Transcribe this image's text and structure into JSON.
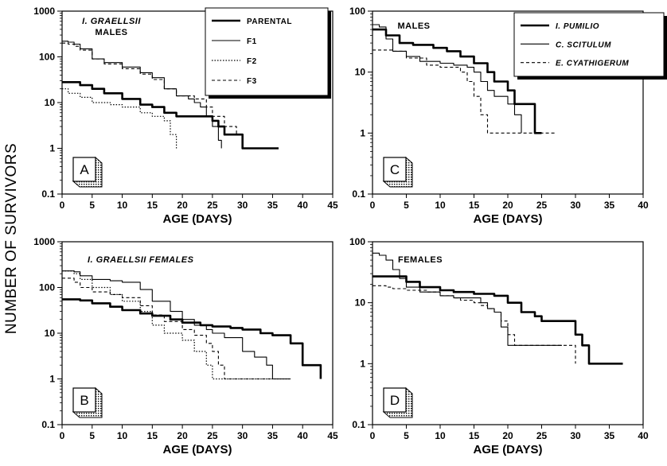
{
  "figure": {
    "ylabel": "NUMBER OF SURVIVORS"
  },
  "chart_data": [
    {
      "panel": "A",
      "type": "line",
      "title": [
        "I. GRAELLSII",
        "MALES"
      ],
      "xlabel": "AGE (DAYS)",
      "ylabel": "NUMBER OF SURVIVORS",
      "xlim": [
        0,
        45
      ],
      "ylim": [
        0.1,
        1000
      ],
      "yscale": "log",
      "xticks": [
        0,
        5,
        10,
        15,
        20,
        25,
        30,
        35,
        40,
        45
      ],
      "yticks": [
        0.1,
        1,
        10,
        100,
        1000
      ],
      "ytick_labels": [
        "0.1",
        "1",
        "10",
        "100",
        "1000"
      ],
      "legend": "top-right",
      "series": [
        {
          "name": "PARENTAL",
          "style": "solid-thick",
          "x": [
            0,
            2,
            3,
            5,
            7,
            10,
            13,
            15,
            17,
            19,
            24,
            25,
            26,
            27,
            28,
            30,
            33,
            36
          ],
          "y": [
            28,
            28,
            24,
            20,
            16,
            12,
            9,
            8,
            6,
            5,
            5,
            4,
            3,
            2,
            2,
            1,
            1,
            1
          ]
        },
        {
          "name": "F1",
          "style": "solid-thin",
          "x": [
            0,
            1,
            2,
            3,
            5,
            7,
            10,
            13,
            15,
            17,
            19,
            21,
            22,
            23,
            24,
            25,
            26,
            26.5
          ],
          "y": [
            220,
            210,
            190,
            150,
            90,
            75,
            60,
            45,
            35,
            20,
            14,
            12,
            10,
            8,
            5,
            3,
            1.5,
            1
          ]
        },
        {
          "name": "F2",
          "style": "dotted",
          "x": [
            0,
            1,
            3,
            5,
            8,
            10,
            13,
            15,
            17,
            18,
            19
          ],
          "y": [
            20,
            16,
            13,
            10,
            9,
            8,
            6,
            5,
            4,
            2,
            1
          ]
        },
        {
          "name": "F3",
          "style": "dashed",
          "x": [
            0,
            1,
            2,
            3,
            5,
            7,
            10,
            13,
            15,
            17,
            19,
            22,
            24,
            25,
            27,
            29,
            30
          ],
          "y": [
            200,
            190,
            170,
            140,
            90,
            70,
            55,
            42,
            32,
            20,
            14,
            12,
            8,
            5,
            3,
            2,
            1
          ]
        }
      ]
    },
    {
      "panel": "B",
      "type": "line",
      "title": [
        "I. GRAELLSII      FEMALES"
      ],
      "xlabel": "AGE (DAYS)",
      "ylabel": "NUMBER OF SURVIVORS",
      "xlim": [
        0,
        45
      ],
      "ylim": [
        0.1,
        1000
      ],
      "yscale": "log",
      "xticks": [
        0,
        5,
        10,
        15,
        20,
        25,
        30,
        35,
        40,
        45
      ],
      "yticks": [
        0.1,
        1,
        10,
        100,
        1000
      ],
      "ytick_labels": [
        "0.1",
        "1",
        "10",
        "100",
        "1000"
      ],
      "series": [
        {
          "name": "PARENTAL",
          "style": "solid-thick",
          "x": [
            0,
            3,
            5,
            8,
            10,
            13,
            15,
            18,
            20,
            23,
            25,
            28,
            30,
            33,
            35,
            38,
            40,
            41,
            42,
            43
          ],
          "y": [
            55,
            52,
            45,
            38,
            32,
            27,
            24,
            20,
            17,
            15,
            14,
            13,
            12,
            10,
            9,
            6,
            2,
            2,
            2,
            1
          ]
        },
        {
          "name": "F1",
          "style": "solid-thin",
          "x": [
            0,
            2,
            3,
            5,
            8,
            10,
            13,
            15,
            18,
            20,
            22,
            24,
            25,
            27,
            30,
            32,
            34,
            35,
            36,
            37,
            38
          ],
          "y": [
            230,
            220,
            180,
            150,
            140,
            130,
            90,
            50,
            30,
            20,
            15,
            12,
            10,
            8,
            4,
            3,
            2,
            1,
            1,
            1,
            1
          ]
        },
        {
          "name": "F2",
          "style": "dotted",
          "x": [
            0,
            2,
            3,
            5,
            8,
            10,
            13,
            15,
            17,
            20,
            22,
            24,
            25,
            26,
            27,
            30,
            32,
            35,
            38
          ],
          "y": [
            230,
            200,
            150,
            100,
            70,
            50,
            30,
            15,
            10,
            7,
            4,
            2,
            1,
            1,
            1,
            1,
            1,
            1,
            1
          ]
        },
        {
          "name": "F3",
          "style": "dashed",
          "x": [
            0,
            2,
            3,
            5,
            8,
            10,
            13,
            15,
            17,
            20,
            22,
            24,
            25,
            26,
            27,
            29,
            30,
            33,
            35,
            38
          ],
          "y": [
            160,
            130,
            100,
            80,
            70,
            60,
            40,
            25,
            18,
            12,
            9,
            6,
            4,
            2,
            1,
            1,
            1,
            1,
            1,
            1
          ]
        }
      ]
    },
    {
      "panel": "C",
      "type": "line",
      "title": [
        "MALES"
      ],
      "xlabel": "AGE (DAYS)",
      "ylabel": "NUMBER OF SURVIVORS",
      "xlim": [
        0,
        40
      ],
      "ylim": [
        0.1,
        100
      ],
      "yscale": "log",
      "xticks": [
        0,
        5,
        10,
        15,
        20,
        25,
        30,
        35,
        40
      ],
      "yticks": [
        0.1,
        1,
        10,
        100
      ],
      "ytick_labels": [
        "0.1",
        "1",
        "10",
        "100"
      ],
      "legend": "top-right",
      "series": [
        {
          "name": "I. PUMILIO",
          "style": "solid-thick",
          "x": [
            0,
            1,
            2,
            4,
            6,
            9,
            11,
            13,
            15,
            17,
            18,
            19,
            20,
            21,
            22,
            23,
            24,
            25
          ],
          "y": [
            50,
            50,
            40,
            30,
            28,
            25,
            22,
            18,
            14,
            10,
            7,
            7,
            5,
            3,
            3,
            3,
            1,
            1
          ]
        },
        {
          "name": "C. SCITULUM",
          "style": "solid-thin",
          "x": [
            0,
            1,
            2,
            3,
            5,
            7,
            10,
            12,
            14,
            15,
            16,
            17,
            18,
            19,
            20,
            21,
            22
          ],
          "y": [
            60,
            55,
            35,
            22,
            18,
            15,
            14,
            13,
            12,
            10,
            7,
            5,
            4,
            4,
            3,
            2,
            1
          ]
        },
        {
          "name": "E. CYATHIGERUM",
          "style": "dashed",
          "x": [
            0,
            2,
            3,
            5,
            8,
            10,
            13,
            14,
            15,
            16,
            17,
            20,
            23,
            27
          ],
          "y": [
            23,
            23,
            22,
            17,
            13,
            12,
            10,
            7,
            4,
            2,
            1,
            1,
            1,
            1
          ]
        }
      ]
    },
    {
      "panel": "D",
      "type": "line",
      "title": [
        "FEMALES"
      ],
      "xlabel": "AGE (DAYS)",
      "ylabel": "NUMBER OF SURVIVORS",
      "xlim": [
        0,
        40
      ],
      "ylim": [
        0.1,
        100
      ],
      "yscale": "log",
      "xticks": [
        0,
        5,
        10,
        15,
        20,
        25,
        30,
        35,
        40
      ],
      "yticks": [
        0.1,
        1,
        10,
        100
      ],
      "ytick_labels": [
        "0.1",
        "1",
        "10",
        "100"
      ],
      "series": [
        {
          "name": "I. PUMILIO",
          "style": "solid-thick",
          "x": [
            0,
            4,
            5,
            7,
            10,
            12,
            15,
            18,
            20,
            22,
            24,
            25,
            27,
            28,
            29,
            30,
            31,
            32,
            33,
            35,
            37
          ],
          "y": [
            27,
            27,
            22,
            18,
            16,
            15,
            14,
            13,
            10,
            7,
            6,
            5,
            5,
            5,
            5,
            3,
            2,
            1,
            1,
            1,
            1
          ]
        },
        {
          "name": "C. SCITULUM",
          "style": "solid-thin",
          "x": [
            0,
            1,
            2,
            3,
            4,
            5,
            7,
            10,
            12,
            14,
            15,
            16,
            17,
            18,
            19,
            20,
            21,
            22,
            25,
            28
          ],
          "y": [
            65,
            60,
            50,
            35,
            25,
            18,
            15,
            13,
            12,
            12,
            12,
            10,
            8,
            7,
            4,
            2,
            2,
            2,
            2,
            2
          ]
        },
        {
          "name": "E. CYATHIGERUM",
          "style": "dashed",
          "x": [
            0,
            2,
            3,
            5,
            8,
            10,
            12,
            13,
            15,
            16,
            17,
            18,
            19,
            20,
            21,
            23,
            25,
            27,
            29,
            30
          ],
          "y": [
            19,
            18,
            17,
            16,
            15,
            13,
            12,
            11,
            10,
            9,
            8,
            7,
            5,
            3,
            2,
            2,
            2,
            2,
            2,
            1
          ]
        }
      ]
    }
  ]
}
